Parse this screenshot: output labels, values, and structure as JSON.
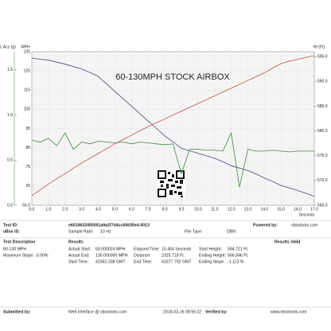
{
  "chart_data": {
    "type": "line",
    "title": "60-130MPH STOCK AIRBOX",
    "x_label": "Seconds",
    "y_label": "MPH",
    "y2_label": "Ht (Ft)",
    "y3_label": "L Acc (g)",
    "x": [
      0,
      0.5,
      1,
      1.5,
      2,
      2.5,
      3,
      3.5,
      4,
      4.5,
      5,
      5.5,
      6,
      6.5,
      7,
      7.5,
      8,
      8.5,
      9,
      9.5,
      10,
      10.5,
      11,
      11.5,
      12,
      12.5,
      13,
      13.5,
      14,
      14.5,
      15,
      15.5,
      16,
      16.5,
      17
    ],
    "xlim": [
      0,
      17
    ],
    "xticks": [
      {
        "value": 0,
        "label": "0.0"
      },
      {
        "value": 1,
        "label": "1.0"
      },
      {
        "value": 2,
        "label": "2.0"
      },
      {
        "value": 3,
        "label": "3.0"
      },
      {
        "value": 4,
        "label": "4.0"
      },
      {
        "value": 5,
        "label": "5.0"
      },
      {
        "value": 6,
        "label": "6.0"
      },
      {
        "value": 7,
        "label": "7.0"
      },
      {
        "value": 8,
        "label": "8.0"
      },
      {
        "value": 9,
        "label": "9.0"
      },
      {
        "value": 10,
        "label": "10.0"
      },
      {
        "value": 11,
        "label": "11.0"
      },
      {
        "value": 12,
        "label": "12.0"
      },
      {
        "value": 13,
        "label": "13.0"
      },
      {
        "value": 14,
        "label": "14.0"
      },
      {
        "value": 15,
        "label": "15.0"
      },
      {
        "value": 16,
        "label": "16.0"
      },
      {
        "value": 17,
        "label": "17.0"
      }
    ],
    "ylim": [
      55,
      135
    ],
    "yticks": [
      {
        "value": 55,
        "label": "55.0"
      },
      65,
      75,
      85,
      95,
      105,
      115,
      125,
      135
    ],
    "y2lim": [
      565,
      596
    ],
    "y2ticks": [
      {
        "value": 565,
        "label": "565.0"
      },
      {
        "value": 570,
        "label": "570.0"
      },
      {
        "value": 575,
        "label": "575.0"
      },
      {
        "value": 580,
        "label": "580.0"
      },
      {
        "value": 585,
        "label": "585.0"
      },
      {
        "value": 590,
        "label": "590.0"
      },
      {
        "value": 595,
        "label": "595.0"
      }
    ],
    "y3lim": [
      0,
      1.7
    ],
    "y3ticks": [
      {
        "value": 0,
        "label": "0.0"
      },
      0.5,
      {
        "value": 1,
        "label": "1.0"
      },
      1.5
    ],
    "grid": true,
    "series": [
      {
        "name": "MPH",
        "color": "#c0504d",
        "axis": "y",
        "values": [
          60,
          63,
          66,
          68.8,
          71.5,
          74.3,
          77,
          79.5,
          82,
          84.5,
          87,
          89.3,
          91.5,
          93.8,
          96,
          98,
          100,
          102,
          104,
          106,
          108,
          110,
          112,
          114,
          116,
          118,
          120,
          122,
          124,
          126.5,
          128.8,
          130.1,
          131,
          132,
          133
        ]
      },
      {
        "name": "Ht (Ft)",
        "color": "#4a4a7a",
        "axis": "y2",
        "values": [
          594.7,
          594.5,
          594.3,
          593.9,
          593.5,
          593,
          592.5,
          591.8,
          591,
          589.5,
          588,
          586.5,
          585,
          583.5,
          582,
          580.5,
          579,
          577.8,
          576.5,
          576,
          575.5,
          575,
          574.5,
          573.8,
          573,
          572.5,
          572,
          571.3,
          570.5,
          569.8,
          569,
          568.5,
          568,
          567.4,
          566.8
        ]
      },
      {
        "name": "L Acc (g)",
        "color": "#3a8a3a",
        "axis": "y3",
        "values": [
          0.72,
          0.7,
          0.74,
          0.66,
          0.8,
          0.62,
          0.7,
          0.68,
          0.71,
          0.7,
          0.69,
          0.7,
          0.68,
          0.7,
          0.69,
          0.68,
          0.67,
          0.68,
          0.35,
          0.62,
          0.62,
          0.61,
          0.61,
          0.6,
          0.8,
          0.2,
          0.62,
          0.6,
          0.6,
          0.61,
          0.6,
          0.59,
          0.6,
          0.6,
          0.6
        ]
      }
    ]
  },
  "report": {
    "rows": [
      [
        "Test ID:",
        "e6510632455001a9a2f7d4cc65635e4-0013",
        "Powered by:",
        "vboxtools.com"
      ],
      [
        "vBox ID:",
        "Sample Rate:",
        "10 Hz",
        "File Type:",
        "DBN"
      ],
      [
        "Test Description",
        "Results",
        "Results Valid"
      ],
      [
        "60-130 MPH",
        "Actual Start:",
        "60.000024 MPH",
        "Elapsed Time:",
        "15.454 Seconds",
        "Start Height:",
        "594.721 Ft."
      ],
      [
        "Maximum Slope: -3.00%",
        "Actual End:",
        "130.000000 MPH",
        "Distance:",
        "2325.718 Ft.",
        "Ending Height:",
        "566.846 Ft."
      ],
      [
        "Start Time:",
        "41562.338 GMT",
        "End Time:",
        "41577.792 GMT",
        "Ending Slope:",
        "-1.113 %"
      ],
      [
        "Submitted by:",
        "Web interface @ vboxtools.com",
        "2018-03-16 08:56:22",
        "Verified by:",
        "www.vboxtools.com"
      ]
    ]
  }
}
